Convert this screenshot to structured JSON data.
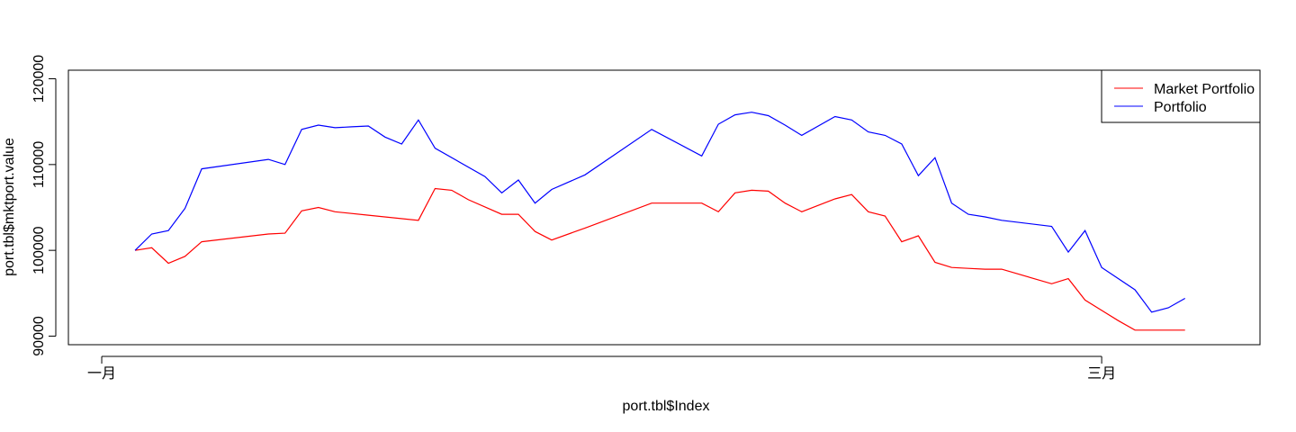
{
  "chart_data": {
    "type": "line",
    "xlabel": "port.tbl$Index",
    "ylabel": "port.tbl$mktport.value",
    "x_ticks": [
      "一月",
      "三月"
    ],
    "y_ticks": [
      "90000",
      "100000",
      "110000",
      "120000"
    ],
    "ylim": [
      89000,
      121000
    ],
    "xlim": [
      -2,
      69.5
    ],
    "legend": {
      "placement": "top-right"
    },
    "series": [
      {
        "name": "Market Portfolio",
        "color": "#ff0000",
        "x": [
          2,
          3,
          4,
          5,
          6,
          10,
          11,
          12,
          13,
          14,
          16,
          19,
          20,
          21,
          22,
          24,
          25,
          26,
          27,
          29,
          33,
          36,
          37,
          38,
          39,
          40,
          41,
          42,
          44,
          45,
          46,
          47,
          48,
          49,
          50,
          51,
          52,
          53,
          54,
          57,
          58,
          59,
          60,
          61,
          62,
          63,
          65
        ],
        "values": [
          100000,
          100300,
          98500,
          99300,
          101000,
          101900,
          102000,
          104600,
          105000,
          104500,
          104100,
          103500,
          107200,
          107000,
          105900,
          104200,
          104200,
          102200,
          101200,
          102600,
          105500,
          105500,
          104500,
          106700,
          107000,
          106900,
          105500,
          104500,
          106000,
          106500,
          104500,
          104000,
          101000,
          101700,
          98600,
          98000,
          97900,
          97800,
          97800,
          96100,
          96700,
          94200,
          93000,
          91800,
          90700,
          90700,
          90700
        ]
      },
      {
        "name": "Portfolio",
        "color": "#0000ff",
        "x": [
          2,
          3,
          4,
          5,
          6,
          10,
          11,
          12,
          13,
          14,
          15,
          16,
          17,
          18,
          19,
          20,
          23,
          24,
          25,
          26,
          27,
          29,
          33,
          36,
          37,
          38,
          39,
          40,
          41,
          42,
          44,
          45,
          46,
          47,
          48,
          49,
          50,
          51,
          52,
          53,
          54,
          57,
          58,
          59,
          60,
          62,
          63,
          64,
          65
        ],
        "values": [
          100000,
          101900,
          102300,
          104900,
          109500,
          110600,
          110000,
          114100,
          114600,
          114300,
          114400,
          114500,
          113200,
          112400,
          115200,
          111900,
          108600,
          106700,
          108200,
          105500,
          107100,
          108800,
          114100,
          111000,
          114700,
          115800,
          116100,
          115700,
          114600,
          113400,
          115600,
          115200,
          113800,
          113400,
          112400,
          108700,
          110800,
          105500,
          104200,
          103900,
          103500,
          102800,
          99800,
          102300,
          98000,
          95400,
          92800,
          93300,
          94400
        ]
      }
    ]
  }
}
